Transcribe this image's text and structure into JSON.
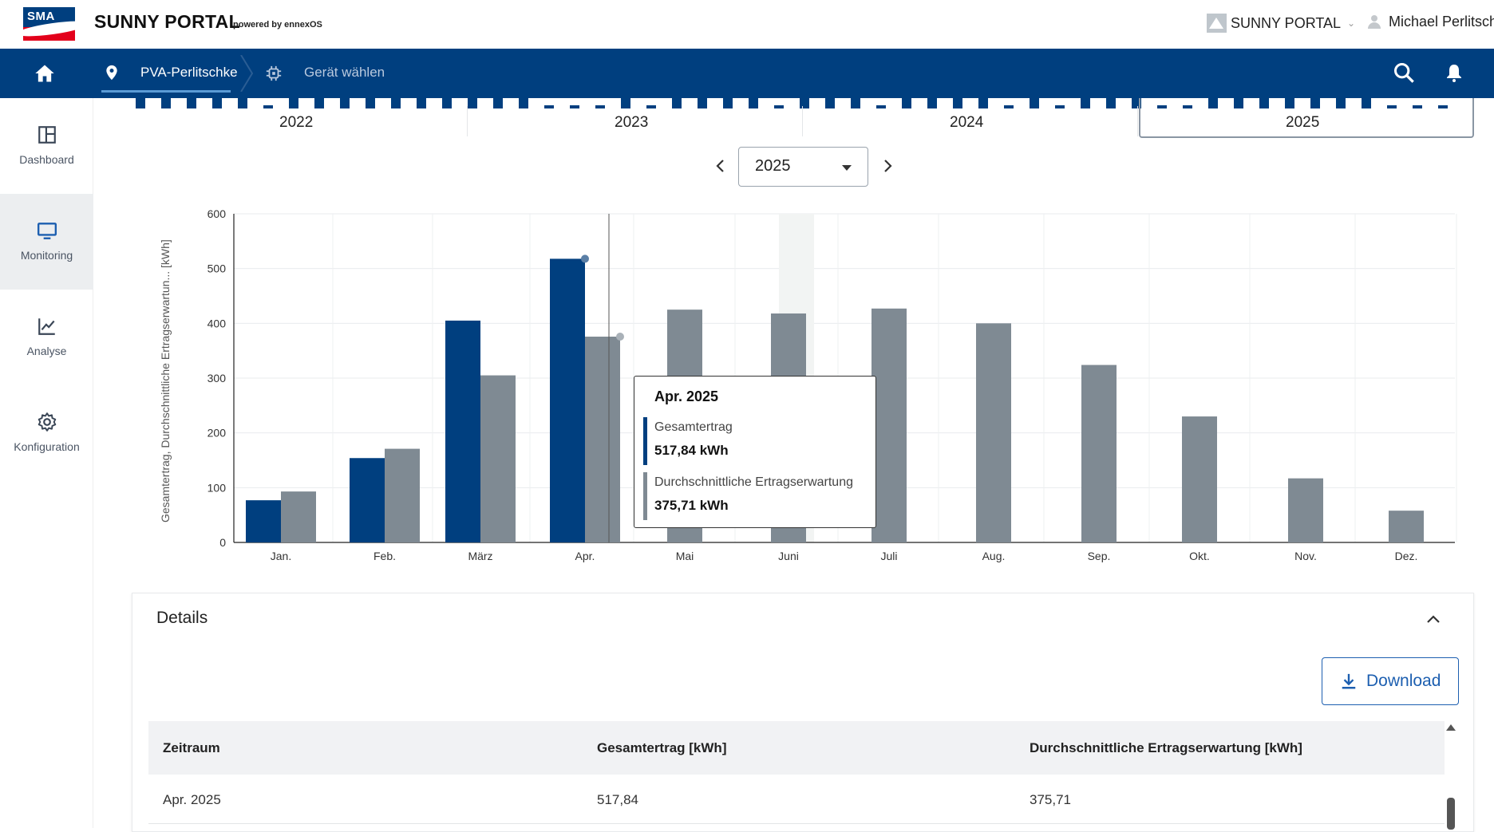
{
  "header": {
    "logo_text": "SMA",
    "brand": "SUNNY PORTAL",
    "brand_sub": "powered by ennexOS",
    "portal_switch": "SUNNY PORTAL",
    "user_name": "Michael Perlitschke"
  },
  "nav": {
    "site": "PVA-Perlitschke",
    "device": "Gerät wählen"
  },
  "sidebar": {
    "items": [
      {
        "label": "Dashboard",
        "icon": "dashboard-icon"
      },
      {
        "label": "Monitoring",
        "icon": "monitor-icon"
      },
      {
        "label": "Analyse",
        "icon": "chart-line-icon"
      },
      {
        "label": "Konfiguration",
        "icon": "gear-icon"
      }
    ]
  },
  "timeline": {
    "years": [
      "2022",
      "2023",
      "2024",
      "2025"
    ],
    "selected": "2025"
  },
  "year_selector": {
    "value": "2025"
  },
  "chart_data": {
    "type": "bar",
    "ylabel": "Gesamtertrag, Durchschnittliche Ertragserwartun... [kWh]",
    "ylim": [
      0,
      600
    ],
    "yticks": [
      0,
      100,
      200,
      300,
      400,
      500,
      600
    ],
    "grid": true,
    "categories": [
      "Jan.",
      "Feb.",
      "März",
      "Apr.",
      "Mai",
      "Juni",
      "Juli",
      "Aug.",
      "Sep.",
      "Okt.",
      "Nov.",
      "Dez."
    ],
    "series": [
      {
        "name": "Gesamtertrag",
        "color": "#003f7f",
        "values": [
          77,
          154,
          405,
          517.84,
          null,
          null,
          null,
          null,
          null,
          null,
          null,
          null
        ]
      },
      {
        "name": "Durchschnittliche Ertragserwartung",
        "color": "#7f8a93",
        "values": [
          93,
          171,
          305,
          375.71,
          425,
          418,
          427,
          400,
          324,
          230,
          117,
          58
        ]
      }
    ]
  },
  "tooltip": {
    "title": "Apr. 2025",
    "s1_name": "Gesamtertrag",
    "s1_value": "517,84 kWh",
    "s2_name": "Durchschnittliche Ertragserwartung",
    "s2_value": "375,71 kWh"
  },
  "details": {
    "title": "Details",
    "download_label": "Download",
    "columns": [
      "Zeitraum",
      "Gesamtertrag [kWh]",
      "Durchschnittliche Ertragserwartung [kWh]"
    ],
    "rows": [
      [
        "Apr. 2025",
        "517,84",
        "375,71"
      ]
    ]
  }
}
